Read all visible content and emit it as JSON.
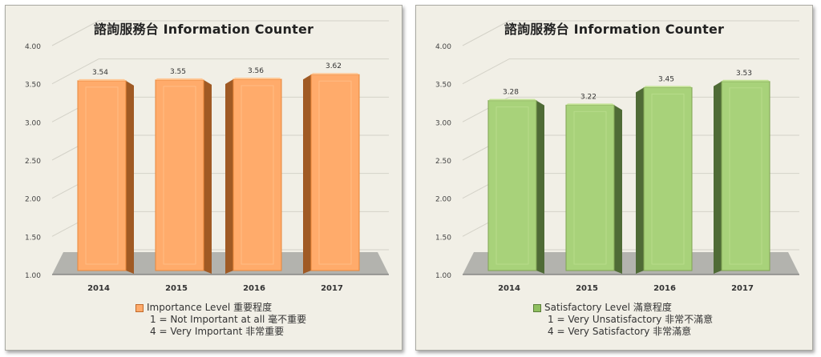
{
  "chart_data": [
    {
      "type": "bar",
      "title": "諮詢服務台  Information Counter",
      "categories": [
        "2014",
        "2015",
        "2016",
        "2017"
      ],
      "series": [
        {
          "name": "Importance Level 重要程度",
          "values": [
            3.54,
            3.55,
            3.56,
            3.62
          ]
        }
      ],
      "value_labels": [
        "3.54",
        "3.55",
        "3.56",
        "3.62"
      ],
      "ylim": [
        1.0,
        4.0
      ],
      "y_ticks": [
        "1.00",
        "1.50",
        "2.00",
        "2.50",
        "3.00",
        "3.50",
        "4.00"
      ],
      "grid": true,
      "legend_position": "bottom",
      "legend_notes": [
        "1 = Not  Important at all 毫不重要",
        "4 = Very Important 非常重要"
      ],
      "colors": {
        "face": "#ffab6b",
        "side": "#a05a24",
        "top": "#ffc896",
        "edge": "#e8873a"
      }
    },
    {
      "type": "bar",
      "title": "諮詢服務台  Information Counter",
      "categories": [
        "2014",
        "2015",
        "2016",
        "2017"
      ],
      "series": [
        {
          "name": "Satisfactory Level 滿意程度",
          "values": [
            3.28,
            3.22,
            3.45,
            3.53
          ]
        }
      ],
      "value_labels": [
        "3.28",
        "3.22",
        "3.45",
        "3.53"
      ],
      "ylim": [
        1.0,
        4.0
      ],
      "y_ticks": [
        "1.00",
        "1.50",
        "2.00",
        "2.50",
        "3.00",
        "3.50",
        "4.00"
      ],
      "grid": true,
      "legend_position": "bottom",
      "legend_notes": [
        "1 = Very Unsatisfactory 非常不滿意",
        "4 = Very Satisfactory 非常滿意"
      ],
      "colors": {
        "face": "#a8d27a",
        "side": "#4f6b36",
        "top": "#c2e394",
        "edge": "#7fa352"
      }
    }
  ]
}
